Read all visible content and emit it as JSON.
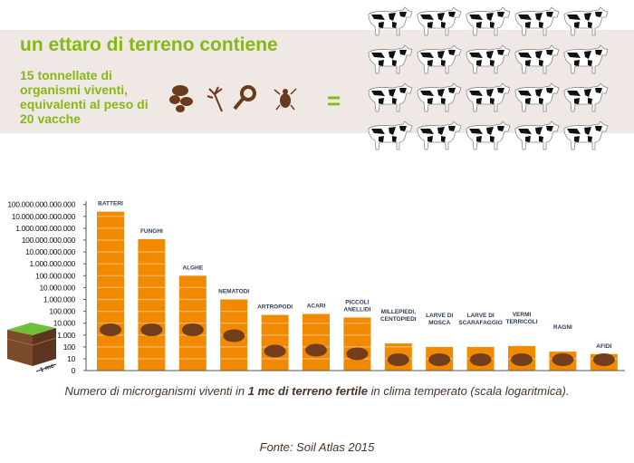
{
  "header": {
    "title": "un ettaro di terreno contiene",
    "subtitle": "15 tonnellate di organismi viventi, equivalenti al peso di 20 vacche",
    "equals": "=",
    "cow_count": 20
  },
  "colors": {
    "bar": "#f18a00",
    "stripe": "#f6b46a",
    "label": "#2e3b57",
    "accent": "#86b817",
    "organism": "#6a3a1c"
  },
  "chart_data": {
    "type": "bar",
    "scale": "log",
    "title": "Numero di microrganismi viventi in 1 mc di terreno fertile in clima temperato (scala logaritmica).",
    "caption_parts": [
      "Numero di microrganismi viventi in ",
      "1 mc di terreno fertile",
      " in clima temperato (scala logaritmica)."
    ],
    "y_ticks": [
      "0",
      "10",
      "100",
      "1.000",
      "10.000",
      "100.000",
      "1.000.000",
      "10.000.000",
      "100.000.000",
      "1.000.000.000",
      "10.000.000.000",
      "100.000.000.000",
      "1.000.000.000.000",
      "10.000.000.000.000",
      "100.000.000.000.000"
    ],
    "ylim": [
      1,
      100000000000000
    ],
    "soil_label": "1 mc",
    "categories": [
      "BATTERI",
      "FUNGHI",
      "ALGHE",
      "NEMATODI",
      "ARTROPODI",
      "ACARI",
      "PICCOLI ANELLIDI",
      "MILLEPIEDI, CENTOPIEDI",
      "LARVE DI MOSCA",
      "LARVE DI SCARAFAGGIO",
      "VERMI TERRICOLI",
      "RAGNI",
      "AFIDI"
    ],
    "values": [
      25000000000000,
      120000000000,
      100000000,
      1000000,
      50000,
      60000,
      30000,
      200,
      100,
      100,
      120,
      40,
      25
    ]
  },
  "footer": {
    "source": "Fonte: Soil Atlas 2015"
  }
}
